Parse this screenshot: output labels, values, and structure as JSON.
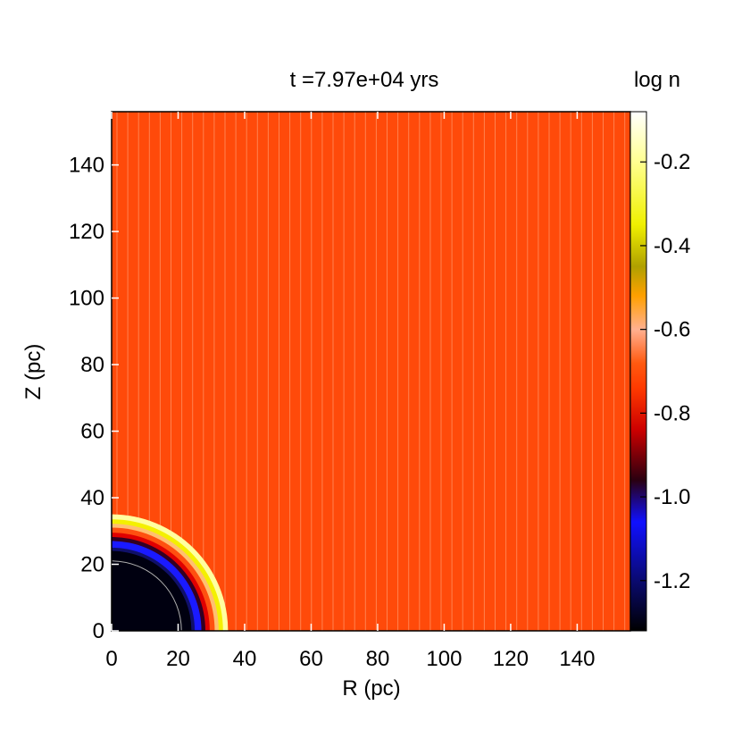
{
  "chart_data": {
    "type": "heatmap",
    "title": "t =7.97e+04 yrs",
    "xlabel": "R (pc)",
    "ylabel": "Z (pc)",
    "xlim": [
      0,
      156
    ],
    "ylim": [
      0,
      156
    ],
    "xticks": [
      0,
      20,
      40,
      60,
      80,
      100,
      120,
      140
    ],
    "yticks": [
      0,
      20,
      40,
      60,
      80,
      100,
      120,
      140
    ],
    "ambient_log_n": -0.68,
    "ambient_color": "#ff4a0a",
    "bubble_shells": [
      {
        "r_outer": 35,
        "log_n": -0.15,
        "color": "#ffffa0"
      },
      {
        "r_outer": 33.5,
        "log_n": -0.35,
        "color": "#f4f000"
      },
      {
        "r_outer": 32.2,
        "log_n": -0.6,
        "color": "#ffc070"
      },
      {
        "r_outer": 31,
        "log_n": -0.7,
        "color": "#ff5010"
      },
      {
        "r_outer": 29.5,
        "log_n": -0.8,
        "color": "#e00000"
      },
      {
        "r_outer": 28.2,
        "log_n": -0.95,
        "color": "#330022"
      },
      {
        "r_outer": 27,
        "log_n": -1.1,
        "color": "#1a1aff"
      },
      {
        "r_outer": 25,
        "log_n": -1.2,
        "color": "#10106a"
      },
      {
        "r_outer": 24,
        "log_n": -1.32,
        "color": "#000010"
      }
    ],
    "inner_contour_r": 21,
    "colorbar": {
      "label": "log n",
      "min": -1.32,
      "max": -0.08,
      "ticks": [
        -1.2,
        -1.0,
        -0.8,
        -0.6,
        -0.4,
        -0.2
      ],
      "tick_labels": [
        "-1.2",
        "-1.0",
        "-0.8",
        "-0.6",
        "-0.4",
        "-0.2"
      ],
      "stops": [
        {
          "v": -1.32,
          "color": "#000000"
        },
        {
          "v": -1.2,
          "color": "#0a0a70"
        },
        {
          "v": -1.06,
          "color": "#1010ff"
        },
        {
          "v": -0.96,
          "color": "#2a0010"
        },
        {
          "v": -0.84,
          "color": "#cc0000"
        },
        {
          "v": -0.74,
          "color": "#ff3a00"
        },
        {
          "v": -0.68,
          "color": "#ff5a10"
        },
        {
          "v": -0.6,
          "color": "#ffb090"
        },
        {
          "v": -0.52,
          "color": "#ffa000"
        },
        {
          "v": -0.45,
          "color": "#b0a000"
        },
        {
          "v": -0.35,
          "color": "#f0f000"
        },
        {
          "v": -0.2,
          "color": "#ffff90"
        },
        {
          "v": -0.08,
          "color": "#ffffff"
        }
      ]
    }
  }
}
